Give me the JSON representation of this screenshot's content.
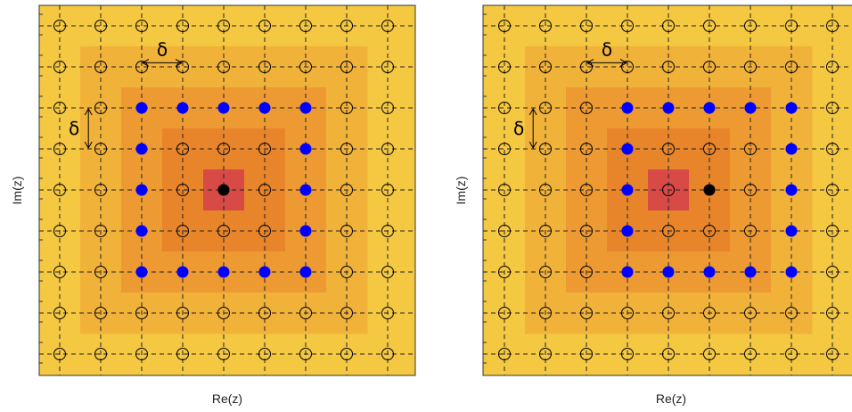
{
  "panels": [
    {
      "id": "left",
      "xlabel": "Re(z)",
      "ylabel": "Im(z)",
      "delta_symbol": "δ",
      "center_cell": [
        4,
        4
      ],
      "black_point": [
        4,
        4
      ],
      "blue_ring": {
        "center": [
          4,
          4
        ],
        "radius": 2
      }
    },
    {
      "id": "right",
      "xlabel": "Re(z)",
      "ylabel": "Im(z)",
      "delta_symbol": "δ",
      "center_cell": [
        4,
        4
      ],
      "black_point": [
        5,
        4
      ],
      "blue_ring": {
        "center": [
          5,
          4
        ],
        "radius": 2
      }
    }
  ],
  "grid": {
    "lines": 9,
    "style": "dashed"
  },
  "colors": {
    "background": "#f5c842",
    "heat_1": "#f1b23a",
    "heat_2": "#ed9a32",
    "heat_3": "#e8852a",
    "center": "#d74a45",
    "open_marker": "#000000",
    "blue_marker": "#0000ff",
    "black_marker": "#000000"
  }
}
